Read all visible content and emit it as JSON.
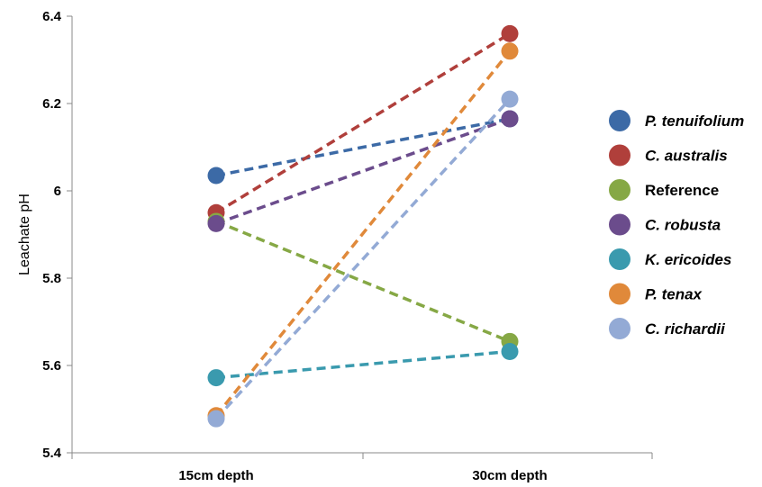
{
  "chart_data": {
    "type": "line",
    "ylabel": "Leachate pH",
    "categories": [
      "15cm depth",
      "30cm depth"
    ],
    "ylim": [
      5.4,
      6.4
    ],
    "yticks": [
      5.4,
      5.6,
      5.8,
      6,
      6.2,
      6.4
    ],
    "ytick_labels": [
      "5.4",
      "5.6",
      "5.8",
      "6",
      "6.2",
      "6.4"
    ],
    "grid": false,
    "legend_position": "right",
    "line_style": "dashed",
    "series": [
      {
        "name": "P. tenuifolium",
        "italic": true,
        "color": "#3c6aa6",
        "values": [
          6.035,
          6.165
        ]
      },
      {
        "name": "C. australis",
        "italic": true,
        "color": "#b03f3b",
        "values": [
          5.95,
          6.36
        ]
      },
      {
        "name": "Reference",
        "italic": false,
        "color": "#86a845",
        "values": [
          5.93,
          5.655
        ]
      },
      {
        "name": "C. robusta",
        "italic": true,
        "color": "#6b4c8c",
        "values": [
          5.925,
          6.165
        ]
      },
      {
        "name": "K. ericoides",
        "italic": true,
        "color": "#3a9aae",
        "values": [
          5.572,
          5.632
        ]
      },
      {
        "name": "P. tenax",
        "italic": true,
        "color": "#e0893a",
        "values": [
          5.485,
          6.32
        ]
      },
      {
        "name": "C. richardii",
        "italic": true,
        "color": "#93aad5",
        "values": [
          5.478,
          6.21
        ]
      }
    ]
  }
}
